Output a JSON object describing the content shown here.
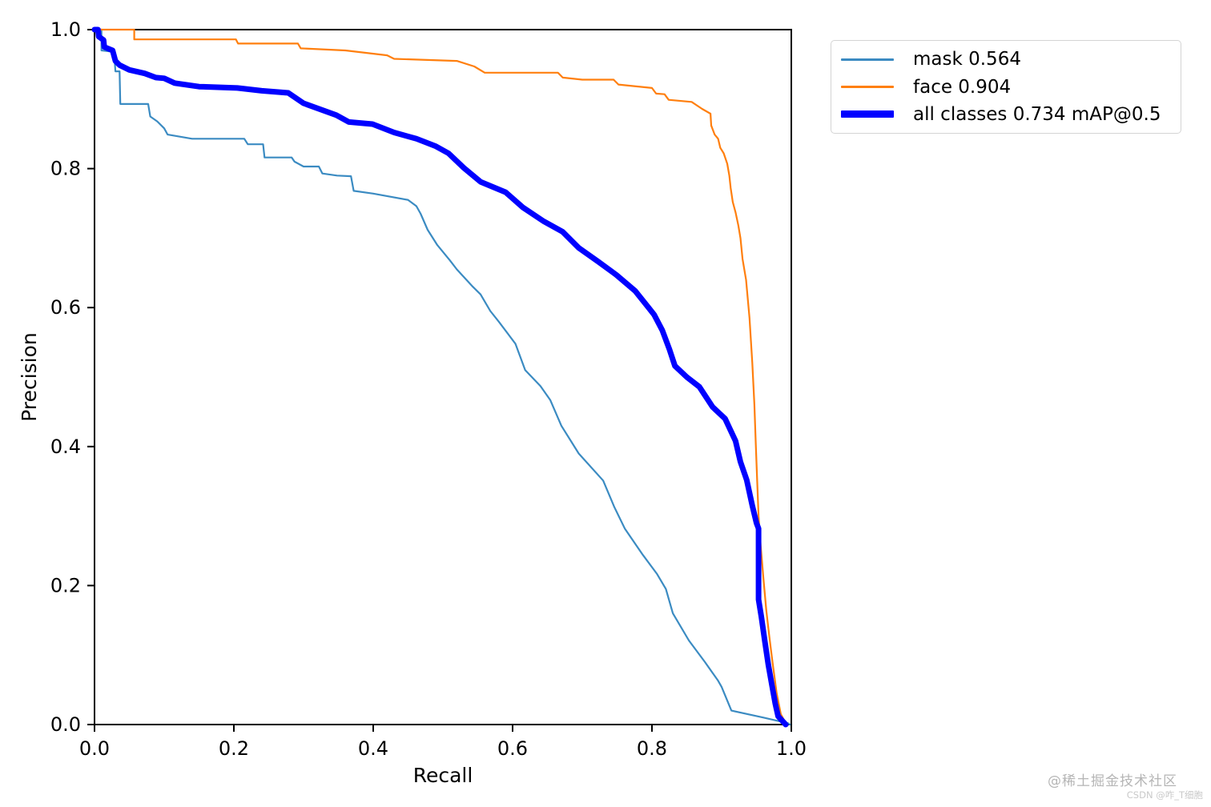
{
  "watermark": {
    "line1": "@稀土掘金技术社区",
    "line2": "CSDN @咋_T细胞"
  },
  "chart_data": {
    "type": "line",
    "title": "",
    "xlabel": "Recall",
    "ylabel": "Precision",
    "xlim": [
      0,
      1
    ],
    "ylim": [
      0,
      1
    ],
    "x_ticks": [
      "0.0",
      "0.2",
      "0.4",
      "0.6",
      "0.8",
      "1.0"
    ],
    "y_ticks": [
      "0.0",
      "0.2",
      "0.4",
      "0.6",
      "0.8",
      "1.0"
    ],
    "grid": false,
    "legend_position": "outside-top-right",
    "axis_color": "#000000",
    "series": [
      {
        "name": "mask",
        "label": "mask 0.564",
        "color": "#3b8bc2",
        "width": 2.2,
        "points": [
          [
            0.0,
            1.0
          ],
          [
            0.01,
            1.0
          ],
          [
            0.01,
            0.97
          ],
          [
            0.028,
            0.968
          ],
          [
            0.03,
            0.94
          ],
          [
            0.036,
            0.94
          ],
          [
            0.037,
            0.893
          ],
          [
            0.077,
            0.893
          ],
          [
            0.08,
            0.875
          ],
          [
            0.09,
            0.868
          ],
          [
            0.1,
            0.858
          ],
          [
            0.105,
            0.849
          ],
          [
            0.14,
            0.843
          ],
          [
            0.215,
            0.843
          ],
          [
            0.22,
            0.835
          ],
          [
            0.242,
            0.835
          ],
          [
            0.244,
            0.816
          ],
          [
            0.283,
            0.816
          ],
          [
            0.287,
            0.81
          ],
          [
            0.3,
            0.803
          ],
          [
            0.322,
            0.803
          ],
          [
            0.327,
            0.793
          ],
          [
            0.348,
            0.79
          ],
          [
            0.368,
            0.789
          ],
          [
            0.372,
            0.768
          ],
          [
            0.4,
            0.764
          ],
          [
            0.45,
            0.755
          ],
          [
            0.462,
            0.746
          ],
          [
            0.468,
            0.735
          ],
          [
            0.478,
            0.712
          ],
          [
            0.492,
            0.69
          ],
          [
            0.51,
            0.668
          ],
          [
            0.52,
            0.655
          ],
          [
            0.543,
            0.63
          ],
          [
            0.554,
            0.619
          ],
          [
            0.568,
            0.595
          ],
          [
            0.58,
            0.58
          ],
          [
            0.604,
            0.548
          ],
          [
            0.618,
            0.51
          ],
          [
            0.64,
            0.487
          ],
          [
            0.654,
            0.467
          ],
          [
            0.67,
            0.43
          ],
          [
            0.695,
            0.39
          ],
          [
            0.73,
            0.351
          ],
          [
            0.746,
            0.313
          ],
          [
            0.761,
            0.282
          ],
          [
            0.787,
            0.244
          ],
          [
            0.807,
            0.217
          ],
          [
            0.82,
            0.195
          ],
          [
            0.83,
            0.16
          ],
          [
            0.853,
            0.121
          ],
          [
            0.876,
            0.09
          ],
          [
            0.895,
            0.063
          ],
          [
            0.9,
            0.054
          ],
          [
            0.914,
            0.02
          ],
          [
            0.96,
            0.01
          ],
          [
            0.995,
            0.002
          ],
          [
            0.998,
            0.0
          ]
        ]
      },
      {
        "name": "face",
        "label": "face 0.904",
        "color": "#ff7f0e",
        "width": 2.2,
        "points": [
          [
            0.0,
            1.0
          ],
          [
            0.057,
            1.0
          ],
          [
            0.057,
            0.986
          ],
          [
            0.203,
            0.986
          ],
          [
            0.206,
            0.98
          ],
          [
            0.292,
            0.98
          ],
          [
            0.296,
            0.973
          ],
          [
            0.36,
            0.97
          ],
          [
            0.42,
            0.963
          ],
          [
            0.43,
            0.958
          ],
          [
            0.52,
            0.955
          ],
          [
            0.545,
            0.947
          ],
          [
            0.56,
            0.938
          ],
          [
            0.665,
            0.938
          ],
          [
            0.672,
            0.931
          ],
          [
            0.7,
            0.928
          ],
          [
            0.745,
            0.928
          ],
          [
            0.752,
            0.921
          ],
          [
            0.8,
            0.916
          ],
          [
            0.806,
            0.908
          ],
          [
            0.818,
            0.907
          ],
          [
            0.824,
            0.899
          ],
          [
            0.857,
            0.896
          ],
          [
            0.872,
            0.886
          ],
          [
            0.884,
            0.879
          ],
          [
            0.885,
            0.862
          ],
          [
            0.89,
            0.849
          ],
          [
            0.895,
            0.843
          ],
          [
            0.898,
            0.83
          ],
          [
            0.903,
            0.822
          ],
          [
            0.908,
            0.807
          ],
          [
            0.911,
            0.79
          ],
          [
            0.913,
            0.772
          ],
          [
            0.916,
            0.752
          ],
          [
            0.92,
            0.737
          ],
          [
            0.924,
            0.718
          ],
          [
            0.927,
            0.7
          ],
          [
            0.93,
            0.67
          ],
          [
            0.935,
            0.64
          ],
          [
            0.94,
            0.585
          ],
          [
            0.944,
            0.52
          ],
          [
            0.947,
            0.46
          ],
          [
            0.949,
            0.405
          ],
          [
            0.951,
            0.35
          ],
          [
            0.953,
            0.3
          ],
          [
            0.956,
            0.258
          ],
          [
            0.96,
            0.21
          ],
          [
            0.964,
            0.165
          ],
          [
            0.968,
            0.13
          ],
          [
            0.973,
            0.09
          ],
          [
            0.979,
            0.045
          ],
          [
            0.985,
            0.015
          ],
          [
            0.993,
            0.0
          ]
        ]
      },
      {
        "name": "all-classes",
        "label": "all classes 0.734 mAP@0.5",
        "color": "#0000ff",
        "width": 7,
        "points": [
          [
            0.0,
            1.0
          ],
          [
            0.005,
            1.0
          ],
          [
            0.006,
            0.99
          ],
          [
            0.013,
            0.985
          ],
          [
            0.014,
            0.975
          ],
          [
            0.026,
            0.97
          ],
          [
            0.03,
            0.955
          ],
          [
            0.036,
            0.949
          ],
          [
            0.05,
            0.942
          ],
          [
            0.072,
            0.937
          ],
          [
            0.088,
            0.931
          ],
          [
            0.1,
            0.93
          ],
          [
            0.115,
            0.923
          ],
          [
            0.15,
            0.918
          ],
          [
            0.205,
            0.916
          ],
          [
            0.24,
            0.912
          ],
          [
            0.278,
            0.909
          ],
          [
            0.3,
            0.894
          ],
          [
            0.347,
            0.877
          ],
          [
            0.365,
            0.867
          ],
          [
            0.399,
            0.864
          ],
          [
            0.43,
            0.852
          ],
          [
            0.462,
            0.843
          ],
          [
            0.49,
            0.832
          ],
          [
            0.508,
            0.822
          ],
          [
            0.53,
            0.801
          ],
          [
            0.554,
            0.781
          ],
          [
            0.59,
            0.766
          ],
          [
            0.615,
            0.744
          ],
          [
            0.645,
            0.724
          ],
          [
            0.672,
            0.709
          ],
          [
            0.695,
            0.686
          ],
          [
            0.723,
            0.666
          ],
          [
            0.749,
            0.647
          ],
          [
            0.776,
            0.624
          ],
          [
            0.795,
            0.6
          ],
          [
            0.803,
            0.59
          ],
          [
            0.815,
            0.567
          ],
          [
            0.825,
            0.54
          ],
          [
            0.833,
            0.516
          ],
          [
            0.85,
            0.5
          ],
          [
            0.868,
            0.486
          ],
          [
            0.887,
            0.457
          ],
          [
            0.905,
            0.44
          ],
          [
            0.92,
            0.408
          ],
          [
            0.927,
            0.378
          ],
          [
            0.936,
            0.352
          ],
          [
            0.944,
            0.315
          ],
          [
            0.95,
            0.29
          ],
          [
            0.953,
            0.282
          ],
          [
            0.953,
            0.18
          ],
          [
            0.957,
            0.155
          ],
          [
            0.962,
            0.12
          ],
          [
            0.967,
            0.086
          ],
          [
            0.972,
            0.058
          ],
          [
            0.977,
            0.03
          ],
          [
            0.981,
            0.012
          ],
          [
            0.992,
            0.0
          ]
        ]
      }
    ]
  }
}
